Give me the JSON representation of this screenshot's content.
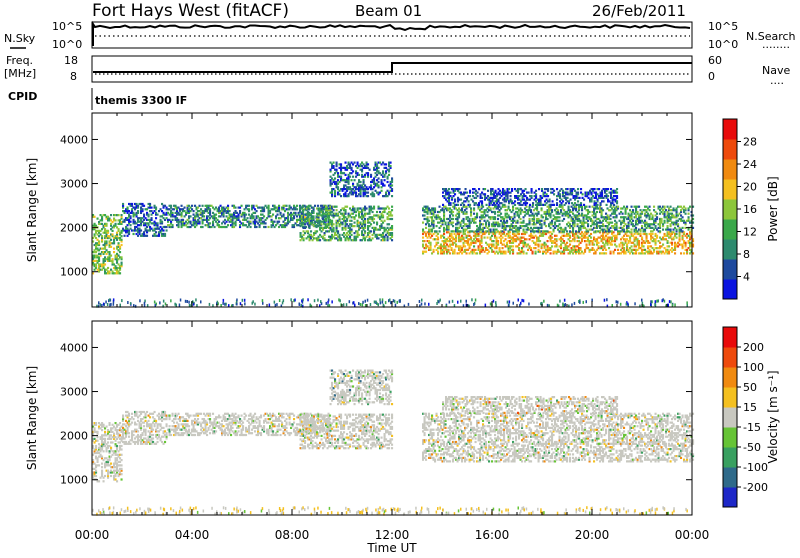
{
  "header": {
    "station": "Fort Hays West (fitACF)",
    "beam": "Beam 01",
    "date": "26/Feb/2011"
  },
  "panels": {
    "nsky": {
      "label": "N.Sky",
      "left_ticks": [
        "10^5",
        "10^0"
      ],
      "right_ticks": [
        "10^5",
        "10^0"
      ],
      "right_label": "N.Search",
      "right_legend": "........"
    },
    "freq": {
      "label_top": "Freq.",
      "label_unit": "[MHz]",
      "left_ticks": [
        "18",
        "8"
      ],
      "right_ticks": [
        "60",
        "0"
      ],
      "right_label": "Nave",
      "right_legend": "....",
      "cpid_label": "CPID",
      "program": "themis 3300 IF"
    }
  },
  "chart_data": [
    {
      "type": "heatmap",
      "name": "power",
      "ylabel": "Slant Range [km]",
      "ylim": [
        200,
        4600
      ],
      "yticks": [
        1000,
        2000,
        3000,
        4000
      ],
      "xlim_hours": [
        0,
        24
      ],
      "colorbar": {
        "label": "Power [dB]",
        "range": [
          0,
          32
        ],
        "ticks": [
          4,
          8,
          12,
          16,
          20,
          24,
          28
        ],
        "colors": [
          "#0a14e0",
          "#1e4a9e",
          "#2d8a6e",
          "#3aa84a",
          "#8cc63a",
          "#f4c020",
          "#f08a10",
          "#ee4a0c",
          "#e80a0a"
        ]
      },
      "regions": [
        {
          "t": [
            0.0,
            1.2
          ],
          "r": [
            950,
            2300
          ],
          "power": 14
        },
        {
          "t": [
            1.2,
            3.0
          ],
          "r": [
            1800,
            2550
          ],
          "power": 6
        },
        {
          "t": [
            3.0,
            9.5
          ],
          "r": [
            2000,
            2500
          ],
          "power": 9
        },
        {
          "t": [
            8.3,
            12.0
          ],
          "r": [
            1700,
            2500
          ],
          "power": 12
        },
        {
          "t": [
            9.5,
            12.0
          ],
          "r": [
            2700,
            3500
          ],
          "power": 6
        },
        {
          "t": [
            13.2,
            24.0
          ],
          "r": [
            1400,
            1900
          ],
          "power": 20
        },
        {
          "t": [
            13.2,
            24.0
          ],
          "r": [
            1900,
            2500
          ],
          "power": 11
        },
        {
          "t": [
            14.0,
            21.0
          ],
          "r": [
            2500,
            2900
          ],
          "power": 5
        }
      ]
    },
    {
      "type": "heatmap",
      "name": "velocity",
      "ylabel": "Slant Range [km]",
      "ylim": [
        200,
        4600
      ],
      "yticks": [
        1000,
        2000,
        3000,
        4000
      ],
      "xlim_hours": [
        0,
        24
      ],
      "xticks": [
        "00:00",
        "04:00",
        "08:00",
        "12:00",
        "16:00",
        "20:00",
        "00:00"
      ],
      "xlabel": "Time UT",
      "colorbar": {
        "label": "Velocity [m s⁻¹]",
        "range": [
          -250,
          250
        ],
        "ticks": [
          200,
          100,
          50,
          15,
          -15,
          -50,
          -100,
          -200
        ],
        "colors": [
          "#1e28c8",
          "#2f6a8a",
          "#39a060",
          "#66c436",
          "#c8c8c0",
          "#f4c020",
          "#f08a10",
          "#ee4a0c",
          "#e80a0a"
        ]
      },
      "regions": [
        {
          "t": [
            0.0,
            1.2
          ],
          "r": [
            950,
            2300
          ],
          "vel": 0
        },
        {
          "t": [
            1.2,
            3.0
          ],
          "r": [
            1800,
            2550
          ],
          "vel": 0
        },
        {
          "t": [
            3.0,
            9.5
          ],
          "r": [
            2000,
            2500
          ],
          "vel": 0
        },
        {
          "t": [
            8.3,
            12.0
          ],
          "r": [
            1700,
            2500
          ],
          "vel": 0
        },
        {
          "t": [
            9.5,
            12.0
          ],
          "r": [
            2700,
            3500
          ],
          "vel": -50
        },
        {
          "t": [
            13.2,
            24.0
          ],
          "r": [
            1400,
            2500
          ],
          "vel": 0
        },
        {
          "t": [
            14.0,
            21.0
          ],
          "r": [
            2500,
            2900
          ],
          "vel": 20
        }
      ]
    }
  ]
}
